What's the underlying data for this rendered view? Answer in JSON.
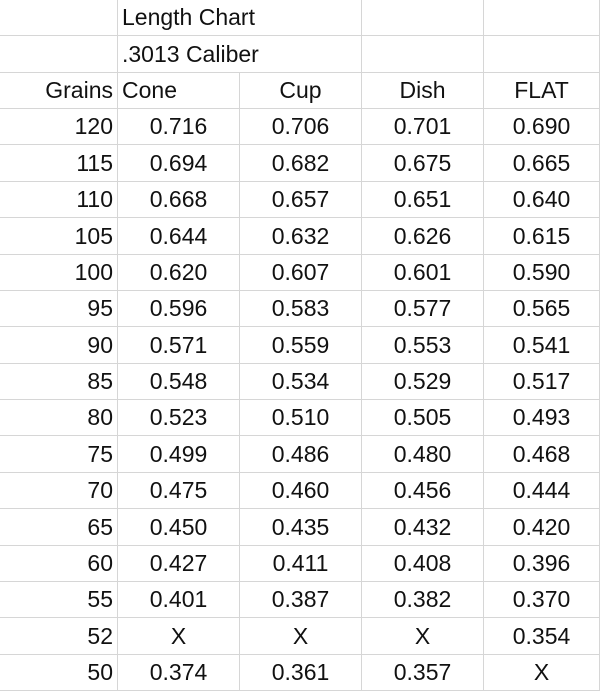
{
  "title": "Length Chart",
  "subtitle": ".3013 Caliber",
  "table": {
    "header": [
      "Grains",
      "Cone",
      "Cup",
      "Dish",
      "FLAT"
    ],
    "rows": [
      [
        120,
        "0.716",
        "0.706",
        "0.701",
        "0.690"
      ],
      [
        115,
        "0.694",
        "0.682",
        "0.675",
        "0.665"
      ],
      [
        110,
        "0.668",
        "0.657",
        "0.651",
        "0.640"
      ],
      [
        105,
        "0.644",
        "0.632",
        "0.626",
        "0.615"
      ],
      [
        100,
        "0.620",
        "0.607",
        "0.601",
        "0.590"
      ],
      [
        95,
        "0.596",
        "0.583",
        "0.577",
        "0.565"
      ],
      [
        90,
        "0.571",
        "0.559",
        "0.553",
        "0.541"
      ],
      [
        85,
        "0.548",
        "0.534",
        "0.529",
        "0.517"
      ],
      [
        80,
        "0.523",
        "0.510",
        "0.505",
        "0.493"
      ],
      [
        75,
        "0.499",
        "0.486",
        "0.480",
        "0.468"
      ],
      [
        70,
        "0.475",
        "0.460",
        "0.456",
        "0.444"
      ],
      [
        65,
        "0.450",
        "0.435",
        "0.432",
        "0.420"
      ],
      [
        60,
        "0.427",
        "0.411",
        "0.408",
        "0.396"
      ],
      [
        55,
        "0.401",
        "0.387",
        "0.382",
        "0.370"
      ],
      [
        52,
        "X",
        "X",
        "X",
        "0.354"
      ],
      [
        50,
        "0.374",
        "0.361",
        "0.357",
        "X"
      ]
    ]
  }
}
